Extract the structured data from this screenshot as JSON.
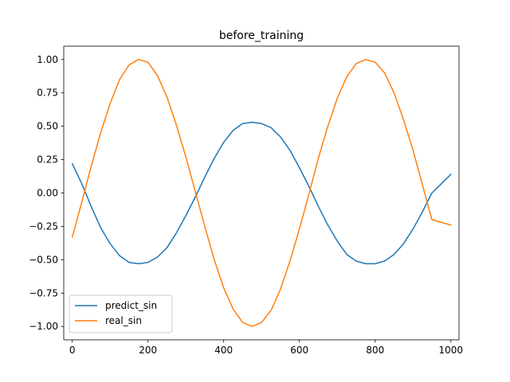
{
  "chart_data": {
    "type": "line",
    "title": "before_training",
    "xlabel": "",
    "ylabel": "",
    "xlim": [
      -22.5,
      1021.5
    ],
    "ylim": [
      -1.1,
      1.1
    ],
    "xticks": [
      0,
      200,
      400,
      600,
      800,
      1000
    ],
    "xtick_labels": [
      "0",
      "200",
      "400",
      "600",
      "800",
      "1000"
    ],
    "yticks": [
      -1.0,
      -0.75,
      -0.5,
      -0.25,
      0.0,
      0.25,
      0.5,
      0.75,
      1.0
    ],
    "ytick_labels": [
      "−1.00",
      "−0.75",
      "−0.50",
      "−0.25",
      "0.00",
      "0.25",
      "0.50",
      "0.75",
      "1.00"
    ],
    "grid": false,
    "legend_position": "lower-left",
    "series": [
      {
        "name": "predict_sin",
        "color": "#1f77b4",
        "x": [
          0,
          25,
          50,
          75,
          100,
          125,
          150,
          175,
          200,
          225,
          250,
          275,
          300,
          325,
          350,
          375,
          400,
          425,
          450,
          475,
          500,
          525,
          550,
          575,
          600,
          625,
          650,
          675,
          700,
          725,
          750,
          775,
          800,
          825,
          850,
          875,
          900,
          925,
          950,
          975,
          1000
        ],
        "y": [
          0.22,
          0.07,
          -0.1,
          -0.26,
          -0.38,
          -0.47,
          -0.52,
          -0.53,
          -0.52,
          -0.48,
          -0.41,
          -0.3,
          -0.17,
          -0.03,
          0.12,
          0.26,
          0.38,
          0.47,
          0.52,
          0.53,
          0.52,
          0.49,
          0.42,
          0.32,
          0.19,
          0.05,
          -0.1,
          -0.24,
          -0.36,
          -0.46,
          -0.51,
          -0.53,
          -0.53,
          -0.51,
          -0.46,
          -0.38,
          -0.27,
          -0.14,
          0.0,
          0.07,
          0.14
        ]
      },
      {
        "name": "real_sin",
        "color": "#ff7f0e",
        "x": [
          0,
          25,
          50,
          75,
          100,
          125,
          150,
          175,
          200,
          225,
          250,
          275,
          300,
          325,
          350,
          375,
          400,
          425,
          450,
          475,
          500,
          525,
          550,
          575,
          600,
          625,
          650,
          675,
          700,
          725,
          750,
          775,
          800,
          825,
          850,
          875,
          900,
          925,
          950,
          975,
          1000
        ],
        "y": [
          -0.33,
          -0.07,
          0.2,
          0.45,
          0.67,
          0.85,
          0.96,
          1.0,
          0.98,
          0.88,
          0.72,
          0.51,
          0.27,
          0.01,
          -0.25,
          -0.5,
          -0.71,
          -0.87,
          -0.97,
          -1.0,
          -0.97,
          -0.88,
          -0.72,
          -0.51,
          -0.27,
          -0.01,
          0.26,
          0.5,
          0.71,
          0.87,
          0.97,
          1.0,
          0.98,
          0.9,
          0.75,
          0.55,
          0.32,
          0.06,
          -0.2,
          -0.22,
          -0.24
        ]
      }
    ]
  }
}
